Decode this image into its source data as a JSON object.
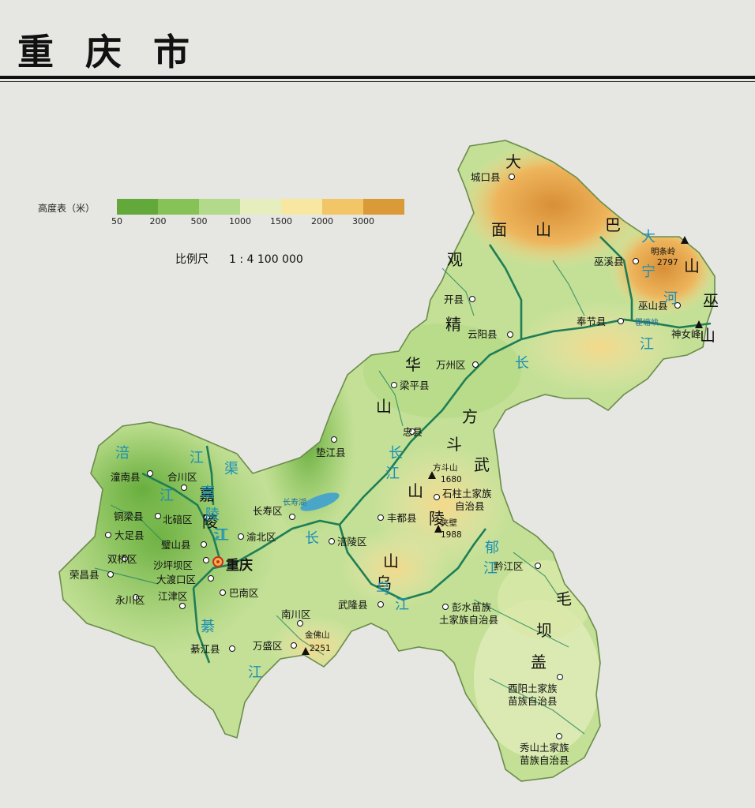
{
  "title": "重 庆 市",
  "legend": {
    "title": "高度表（米）",
    "ticks": [
      "50",
      "200",
      "500",
      "1000",
      "1500",
      "2000",
      "3000"
    ],
    "colors": [
      "#62a83a",
      "#86c256",
      "#b3d98a",
      "#e6eebe",
      "#f7e7a1",
      "#f2c567",
      "#d99a37"
    ]
  },
  "scale": {
    "label": "比例尺",
    "value": "1 : 4 100 000"
  },
  "capital": "重庆",
  "places": [
    "城口县",
    "巫溪县",
    "开县",
    "巫山县",
    "奉节县",
    "云阳县",
    "万州区",
    "梁平县",
    "忠县",
    "垫江县",
    "潼南县",
    "合川区",
    "长寿区",
    "铜梁县",
    "北碚区",
    "渝北区",
    "大足县",
    "璧山县",
    "涪陵区",
    "丰都县",
    "荣昌县",
    "双桥区",
    "沙坪坝区",
    "大渡口区",
    "永川区",
    "江津区",
    "巴南区",
    "南川区",
    "武隆县",
    "黔江区",
    "綦江县",
    "万盛区",
    "彭水苗族",
    "土家族自治县",
    "酉阳土家族",
    "苗族自治县",
    "秀山土家族",
    "苗族自治县",
    "石柱土家族",
    "自治县",
    "神女峰"
  ],
  "peaks": [
    {
      "name": "明条岭",
      "elev": "2797"
    },
    {
      "name": "方斗山",
      "elev": "1680"
    },
    {
      "name": "夹壁",
      "elev": "1988"
    },
    {
      "name": "金佛山",
      "elev": "2251"
    }
  ],
  "ranges": [
    "大",
    "巴",
    "山",
    "面",
    "山",
    "巫",
    "山",
    "观",
    "精",
    "华",
    "山",
    "方",
    "斗",
    "武",
    "山",
    "陵",
    "山",
    "乌",
    "毛",
    "坝",
    "盖",
    "嘉",
    "陵"
  ],
  "rivers": [
    "长",
    "江",
    "长",
    "江",
    "长",
    "江",
    "涪",
    "江",
    "渠",
    "江",
    "嘉",
    "陵",
    "江",
    "綦",
    "江",
    "乌",
    "江",
    "郁",
    "江",
    "大",
    "宁",
    "河",
    "长寿湖",
    "瞿塘峡"
  ]
}
